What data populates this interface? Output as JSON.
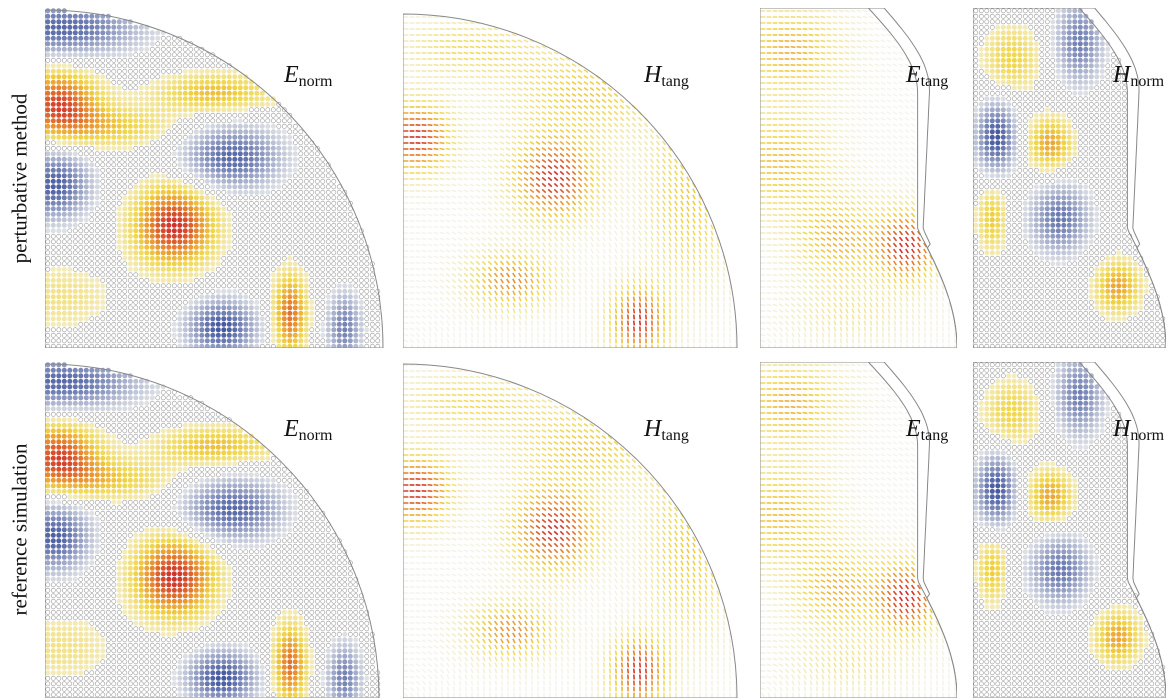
{
  "rows": [
    {
      "label": "perturbative method"
    },
    {
      "label": "reference simulation"
    }
  ],
  "panels": [
    {
      "symbol": "E",
      "subscript": "norm",
      "shape": "quarter-disk",
      "kind": "scalar"
    },
    {
      "symbol": "H",
      "subscript": "tang",
      "shape": "quarter-disk",
      "kind": "vector"
    },
    {
      "symbol": "E",
      "subscript": "tang",
      "shape": "cavity-cut",
      "kind": "vector"
    },
    {
      "symbol": "H",
      "subscript": "norm",
      "shape": "cavity-cut",
      "kind": "scalar"
    }
  ],
  "colors": {
    "positive_strong": "#d0312d",
    "positive_mid": "#e88c2e",
    "positive_weak": "#f0d648",
    "neutral": "#f5f5f0",
    "negative": "#3a4f9a",
    "outline": "#888888"
  }
}
